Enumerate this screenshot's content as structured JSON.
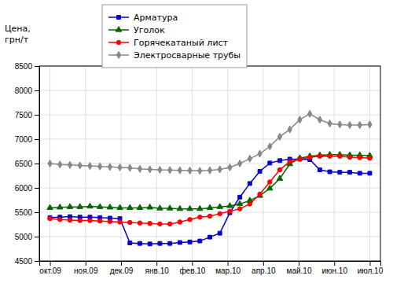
{
  "chart_data": {
    "type": "line",
    "ylabel": [
      "Цена,",
      "грн/т"
    ],
    "x": [
      0,
      0.28125,
      0.5625,
      0.84375,
      1.125,
      1.40625,
      1.6875,
      1.96875,
      2.25,
      2.53125,
      2.8125,
      3.09375,
      3.375,
      3.65625,
      3.9375,
      4.21875,
      4.5,
      4.78125,
      5.0625,
      5.34375,
      5.625,
      5.90625,
      6.1875,
      6.46875,
      6.75,
      7.03125,
      7.3125,
      7.59375,
      7.875,
      8.15625,
      8.4375,
      8.71875,
      9
    ],
    "xlim": [
      -0.3,
      9.3
    ],
    "xticks": [
      {
        "value": 0,
        "label": "окт.09"
      },
      {
        "value": 1,
        "label": "ноя.09"
      },
      {
        "value": 2,
        "label": "дек.09"
      },
      {
        "value": 3,
        "label": "янв.10"
      },
      {
        "value": 4,
        "label": "фев.10"
      },
      {
        "value": 5,
        "label": "мар.10"
      },
      {
        "value": 6,
        "label": "апр.10"
      },
      {
        "value": 7,
        "label": "май.10"
      },
      {
        "value": 8,
        "label": "июн.10"
      },
      {
        "value": 9,
        "label": "июл.10"
      }
    ],
    "ylim": [
      4500,
      8500
    ],
    "yticks": [
      4500,
      5000,
      5500,
      6000,
      6500,
      7000,
      7500,
      8000,
      8500
    ],
    "grid": true,
    "series": [
      {
        "name": "Арматура",
        "color": "#0000CC",
        "marker": "square",
        "values": [
          5390,
          5400,
          5410,
          5400,
          5400,
          5390,
          5380,
          5370,
          4870,
          4860,
          4850,
          4860,
          4860,
          4880,
          4890,
          4910,
          4990,
          5070,
          5490,
          5810,
          6090,
          6340,
          6510,
          6560,
          6590,
          6590,
          6580,
          6370,
          6330,
          6320,
          6320,
          6300,
          6300
        ]
      },
      {
        "name": "Уголок",
        "color": "#006600",
        "marker": "triangle",
        "values": [
          5590,
          5600,
          5610,
          5610,
          5620,
          5610,
          5600,
          5590,
          5590,
          5590,
          5600,
          5580,
          5580,
          5570,
          5570,
          5570,
          5590,
          5610,
          5630,
          5670,
          5740,
          5840,
          5990,
          6190,
          6490,
          6610,
          6650,
          6670,
          6680,
          6680,
          6670,
          6670,
          6660
        ]
      },
      {
        "name": "Горячекатаный лист",
        "color": "#FF0000",
        "marker": "circle",
        "values": [
          5370,
          5350,
          5340,
          5330,
          5330,
          5320,
          5310,
          5300,
          5290,
          5280,
          5270,
          5260,
          5260,
          5300,
          5350,
          5400,
          5420,
          5470,
          5520,
          5570,
          5670,
          5870,
          6120,
          6370,
          6540,
          6590,
          6630,
          6650,
          6650,
          6650,
          6630,
          6620,
          6610
        ]
      },
      {
        "name": "Электросварные трубы",
        "color": "#888888",
        "marker": "diamond",
        "values": [
          6500,
          6480,
          6470,
          6460,
          6450,
          6440,
          6430,
          6420,
          6410,
          6390,
          6380,
          6370,
          6365,
          6360,
          6355,
          6350,
          6360,
          6380,
          6420,
          6500,
          6600,
          6700,
          6850,
          7050,
          7200,
          7400,
          7520,
          7400,
          7320,
          7300,
          7290,
          7290,
          7300
        ]
      }
    ]
  }
}
